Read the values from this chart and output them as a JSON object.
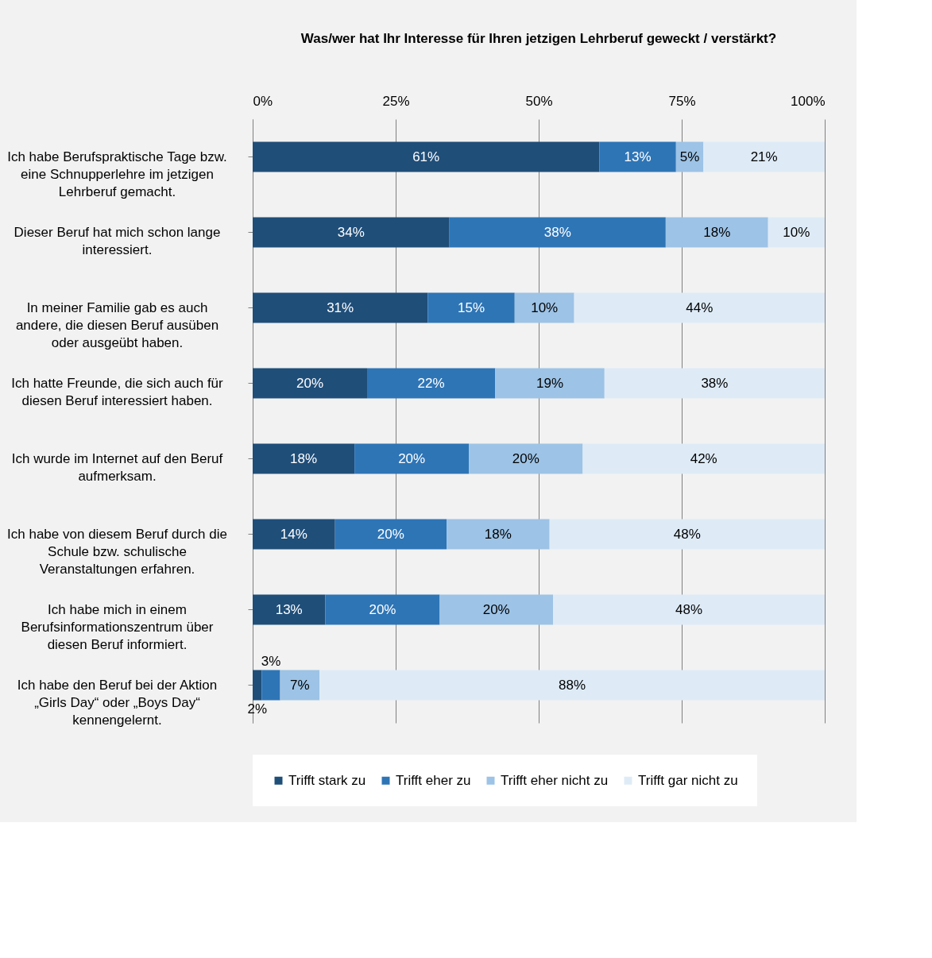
{
  "chart_data": {
    "type": "bar",
    "orientation": "horizontal",
    "stacked": true,
    "title": "Was/wer hat Ihr Interesse für Ihren jetzigen Lehrberuf geweckt / verstärkt?",
    "categories": [
      "Ich habe Berufspraktische Tage bzw. eine Schnupperlehre im jetzigen Lehrberuf gemacht.",
      "Dieser Beruf hat mich schon lange interessiert.",
      "In meiner Familie gab es auch andere, die diesen Beruf ausüben oder ausgeübt haben.",
      "Ich hatte Freunde, die sich auch für diesen Beruf interessiert haben.",
      "Ich wurde im Internet auf den Beruf aufmerksam.",
      "Ich habe von diesem Beruf durch die Schule bzw. schulische Veranstaltungen erfahren.",
      "Ich habe mich in einem Berufsinformationszentrum über diesen Beruf informiert.",
      "Ich habe den Beruf bei der Aktion „Girls Day“ oder „Boys Day“ kennengelernt."
    ],
    "series": [
      {
        "name": "Trifft stark zu",
        "color": "#1f4e79",
        "values": [
          60.6,
          34.4,
          30.6,
          20.0,
          17.8,
          14.4,
          12.7,
          1.6
        ],
        "value_labels": [
          "61%",
          "34%",
          "31%",
          "20%",
          "18%",
          "14%",
          "13%",
          "2%"
        ]
      },
      {
        "name": "Trifft eher zu",
        "color": "#2e75b6",
        "values": [
          13.4,
          37.8,
          15.2,
          22.4,
          20.0,
          19.5,
          20.0,
          3.2
        ],
        "value_labels": [
          "13%",
          "38%",
          "15%",
          "22%",
          "20%",
          "20%",
          "20%",
          "3%"
        ]
      },
      {
        "name": "Trifft eher nicht zu",
        "color": "#9dc3e6",
        "values": [
          4.8,
          17.9,
          10.4,
          19.1,
          19.9,
          18.0,
          19.8,
          6.9
        ],
        "value_labels": [
          "5%",
          "18%",
          "10%",
          "19%",
          "20%",
          "18%",
          "20%",
          "7%"
        ]
      },
      {
        "name": "Trifft gar nicht zu",
        "color": "#deebf7",
        "values": [
          21.2,
          9.9,
          43.8,
          38.5,
          42.3,
          48.1,
          47.5,
          88.3
        ],
        "value_labels": [
          "21%",
          "10%",
          "44%",
          "38%",
          "42%",
          "48%",
          "48%",
          "88%"
        ]
      }
    ],
    "xlim": [
      0,
      100
    ],
    "xticks": [
      {
        "value": 0,
        "label": "0%"
      },
      {
        "value": 25,
        "label": "25%"
      },
      {
        "value": 50,
        "label": "50%"
      },
      {
        "value": 75,
        "label": "75%"
      },
      {
        "value": 100,
        "label": "100%"
      }
    ],
    "grid": "x",
    "legend": "bottom"
  }
}
